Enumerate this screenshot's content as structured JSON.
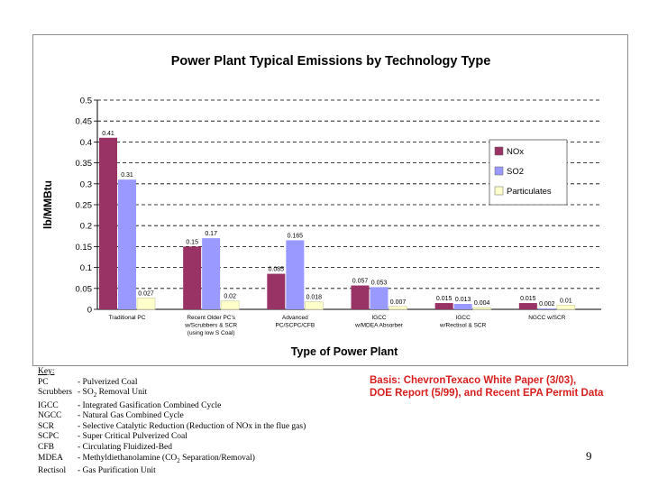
{
  "chart_data": {
    "type": "bar",
    "title": "Power Plant Typical Emissions by Technology Type",
    "xlabel": "Type of Power Plant",
    "ylabel": "lb/MMBtu",
    "ylim": [
      0,
      0.5
    ],
    "yticks": [
      "0",
      "0.05",
      "0.1",
      "0.15",
      "0.2",
      "0.25",
      "0.3",
      "0.35",
      "0.4",
      "0.45",
      "0.5"
    ],
    "grid": "dashed-horizontal",
    "legend_position": "right",
    "categories": [
      [
        "Traditional PC"
      ],
      [
        "Recent Older PC's",
        "w/Scrubbers & SCR",
        "(using low S Coal)"
      ],
      [
        "Advanced",
        "PC/SCPC/CFB"
      ],
      [
        "IGCC",
        "w/MDEA Absorber"
      ],
      [
        "IGCC",
        "w/Rectisol & SCR"
      ],
      [
        "NGCC w/SCR"
      ]
    ],
    "series": [
      {
        "name": "NOx",
        "color": "#993366",
        "values": [
          0.41,
          0.15,
          0.085,
          0.057,
          0.015,
          0.015
        ],
        "labels": [
          "0.41",
          "0.15",
          "0.085",
          "0.057",
          "0.015",
          "0.015"
        ]
      },
      {
        "name": "SO2",
        "color": "#9999ff",
        "values": [
          0.31,
          0.17,
          0.165,
          0.053,
          0.013,
          0.002
        ],
        "labels": [
          "0.31",
          "0.17",
          "0.165",
          "0.053",
          "0.013",
          "0.002"
        ]
      },
      {
        "name": "Particulates",
        "color": "#ffffcc",
        "values": [
          0.027,
          0.02,
          0.018,
          0.007,
          0.004,
          0.01
        ],
        "labels": [
          "0.027",
          "0.02",
          "0.018",
          "0.007",
          "0.004",
          "0.01"
        ]
      }
    ]
  },
  "key": {
    "title": "Key:",
    "items": [
      {
        "abbr": "PC",
        "desc": "- Pulverized Coal"
      },
      {
        "abbr": "Scrubbers",
        "desc": "- SO2 Removal Unit"
      },
      {
        "abbr": "IGCC",
        "desc": "- Integrated Gasification Combined Cycle"
      },
      {
        "abbr": "NGCC",
        "desc": "- Natural Gas Combined Cycle"
      },
      {
        "abbr": "SCR",
        "desc": "- Selective Catalytic Reduction (Reduction of NOx in the flue gas)"
      },
      {
        "abbr": "SCPC",
        "desc": "- Super Critical Pulverized Coal"
      },
      {
        "abbr": "CFB",
        "desc": "- Circulating Fluidized-Bed"
      },
      {
        "abbr": "MDEA",
        "desc": "- Methyldiethanolamine (CO2 Separation/Removal)"
      },
      {
        "abbr": "Rectisol",
        "desc": "- Gas Purification Unit"
      }
    ]
  },
  "basis": {
    "line1": "Basis: ChevronTexaco White Paper (3/03),",
    "line2": "DOE Report (5/99), and Recent EPA Permit Data"
  },
  "page_number": "9"
}
